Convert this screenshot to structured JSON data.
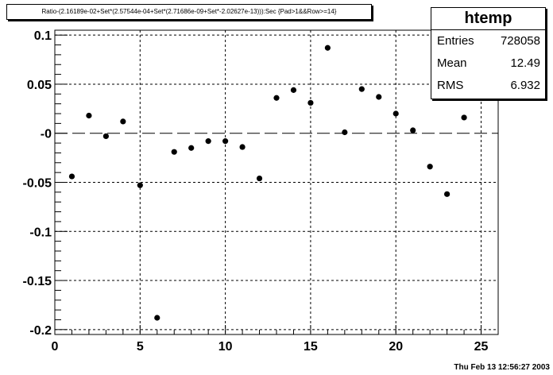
{
  "title": "Ratio-(2.16189e-02+Set*(2.57544e-04+Set*(2.71686e-09+Set*-2.02627e-13))):Sec {Pad>1&&Row>=14}",
  "stats": {
    "name": "htemp",
    "entries_label": "Entries",
    "entries_value": "728058",
    "mean_label": "Mean",
    "mean_value": "12.49",
    "rms_label": "RMS",
    "rms_value": "6.932"
  },
  "footer": "Thu Feb 13 12:56:27 2003",
  "colors": {
    "marker": "#000000",
    "grid": "#000000",
    "frame": "#000000"
  },
  "chart_data": {
    "type": "scatter",
    "xlim": [
      0,
      26
    ],
    "ylim": [
      -0.205,
      0.105
    ],
    "grid": true,
    "x_ticks": [
      "0",
      "5",
      "10",
      "15",
      "20",
      "25"
    ],
    "y_ticks": [
      "0.1",
      "0.05",
      "-0",
      "-0.05",
      "-0.1",
      "-0.15",
      "-0.2"
    ],
    "x": [
      1,
      2,
      3,
      4,
      5,
      6,
      7,
      8,
      9,
      10,
      11,
      12,
      13,
      14,
      15,
      16,
      17,
      18,
      19,
      20,
      21,
      22,
      23,
      24
    ],
    "y": [
      -0.044,
      0.018,
      -0.003,
      0.012,
      -0.053,
      -0.188,
      -0.019,
      -0.015,
      -0.008,
      -0.008,
      -0.014,
      -0.046,
      0.036,
      0.044,
      0.031,
      0.087,
      0.001,
      0.045,
      0.037,
      0.02,
      0.003,
      -0.034,
      -0.062,
      0.016
    ]
  }
}
